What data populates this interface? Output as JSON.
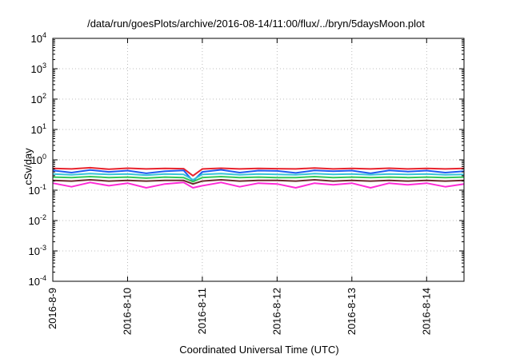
{
  "chart_data": {
    "type": "line",
    "title": "/data/run/goesPlots/archive/2016-08-14/11:00/flux/../bryn/5daysMoon.plot",
    "xlabel": "Coordinated Universal Time (UTC)",
    "ylabel": "cSv/day",
    "yscale": "log",
    "ylim": [
      0.0001,
      10000
    ],
    "yticks": [
      {
        "base": "10",
        "exp": "-4"
      },
      {
        "base": "10",
        "exp": "-3"
      },
      {
        "base": "10",
        "exp": "-2"
      },
      {
        "base": "10",
        "exp": "-1"
      },
      {
        "base": "10",
        "exp": "0"
      },
      {
        "base": "10",
        "exp": "1"
      },
      {
        "base": "10",
        "exp": "2"
      },
      {
        "base": "10",
        "exp": "3"
      },
      {
        "base": "10",
        "exp": "4"
      }
    ],
    "xlim": [
      "2016-08-09 00:00",
      "2016-08-14 12:00"
    ],
    "xticks": [
      "2016-8-9",
      "2016-8-10",
      "2016-8-11",
      "2016-8-12",
      "2016-8-13",
      "2016-8-14"
    ],
    "grid": true,
    "x": [
      "2016-08-09 00:00",
      "2016-08-09 06:00",
      "2016-08-09 12:00",
      "2016-08-09 18:00",
      "2016-08-10 00:00",
      "2016-08-10 06:00",
      "2016-08-10 12:00",
      "2016-08-10 18:00",
      "2016-08-10 21:00",
      "2016-08-11 00:00",
      "2016-08-11 06:00",
      "2016-08-11 12:00",
      "2016-08-11 18:00",
      "2016-08-12 00:00",
      "2016-08-12 06:00",
      "2016-08-12 12:00",
      "2016-08-12 18:00",
      "2016-08-13 00:00",
      "2016-08-13 06:00",
      "2016-08-13 12:00",
      "2016-08-13 18:00",
      "2016-08-14 00:00",
      "2016-08-14 06:00",
      "2016-08-14 12:00"
    ],
    "series": [
      {
        "color": "#e8242e",
        "values": [
          0.52,
          0.5,
          0.55,
          0.49,
          0.53,
          0.5,
          0.52,
          0.51,
          0.3,
          0.5,
          0.53,
          0.5,
          0.52,
          0.51,
          0.5,
          0.54,
          0.5,
          0.52,
          0.5,
          0.53,
          0.5,
          0.52,
          0.5,
          0.52
        ]
      },
      {
        "color": "#1f5cf0",
        "values": [
          0.45,
          0.38,
          0.46,
          0.4,
          0.44,
          0.36,
          0.42,
          0.45,
          0.2,
          0.4,
          0.47,
          0.38,
          0.44,
          0.43,
          0.37,
          0.45,
          0.42,
          0.44,
          0.36,
          0.45,
          0.41,
          0.44,
          0.38,
          0.42
        ]
      },
      {
        "color": "#37c4d8",
        "values": [
          0.34,
          0.32,
          0.35,
          0.33,
          0.34,
          0.31,
          0.34,
          0.33,
          0.22,
          0.33,
          0.35,
          0.32,
          0.34,
          0.33,
          0.32,
          0.35,
          0.33,
          0.34,
          0.32,
          0.34,
          0.33,
          0.34,
          0.32,
          0.33
        ]
      },
      {
        "color": "#34c759",
        "values": [
          0.27,
          0.26,
          0.28,
          0.26,
          0.27,
          0.25,
          0.27,
          0.26,
          0.19,
          0.26,
          0.28,
          0.26,
          0.27,
          0.26,
          0.26,
          0.28,
          0.26,
          0.27,
          0.26,
          0.27,
          0.26,
          0.27,
          0.26,
          0.27
        ]
      },
      {
        "color": "#6a2b2b",
        "values": [
          0.21,
          0.2,
          0.22,
          0.2,
          0.21,
          0.2,
          0.21,
          0.21,
          0.16,
          0.2,
          0.22,
          0.2,
          0.21,
          0.21,
          0.2,
          0.22,
          0.2,
          0.21,
          0.2,
          0.21,
          0.2,
          0.21,
          0.2,
          0.21
        ]
      },
      {
        "color": "#ff2bd6",
        "values": [
          0.17,
          0.13,
          0.18,
          0.14,
          0.17,
          0.12,
          0.16,
          0.18,
          0.12,
          0.14,
          0.18,
          0.13,
          0.17,
          0.16,
          0.12,
          0.17,
          0.15,
          0.17,
          0.12,
          0.17,
          0.15,
          0.17,
          0.13,
          0.16
        ]
      }
    ]
  }
}
